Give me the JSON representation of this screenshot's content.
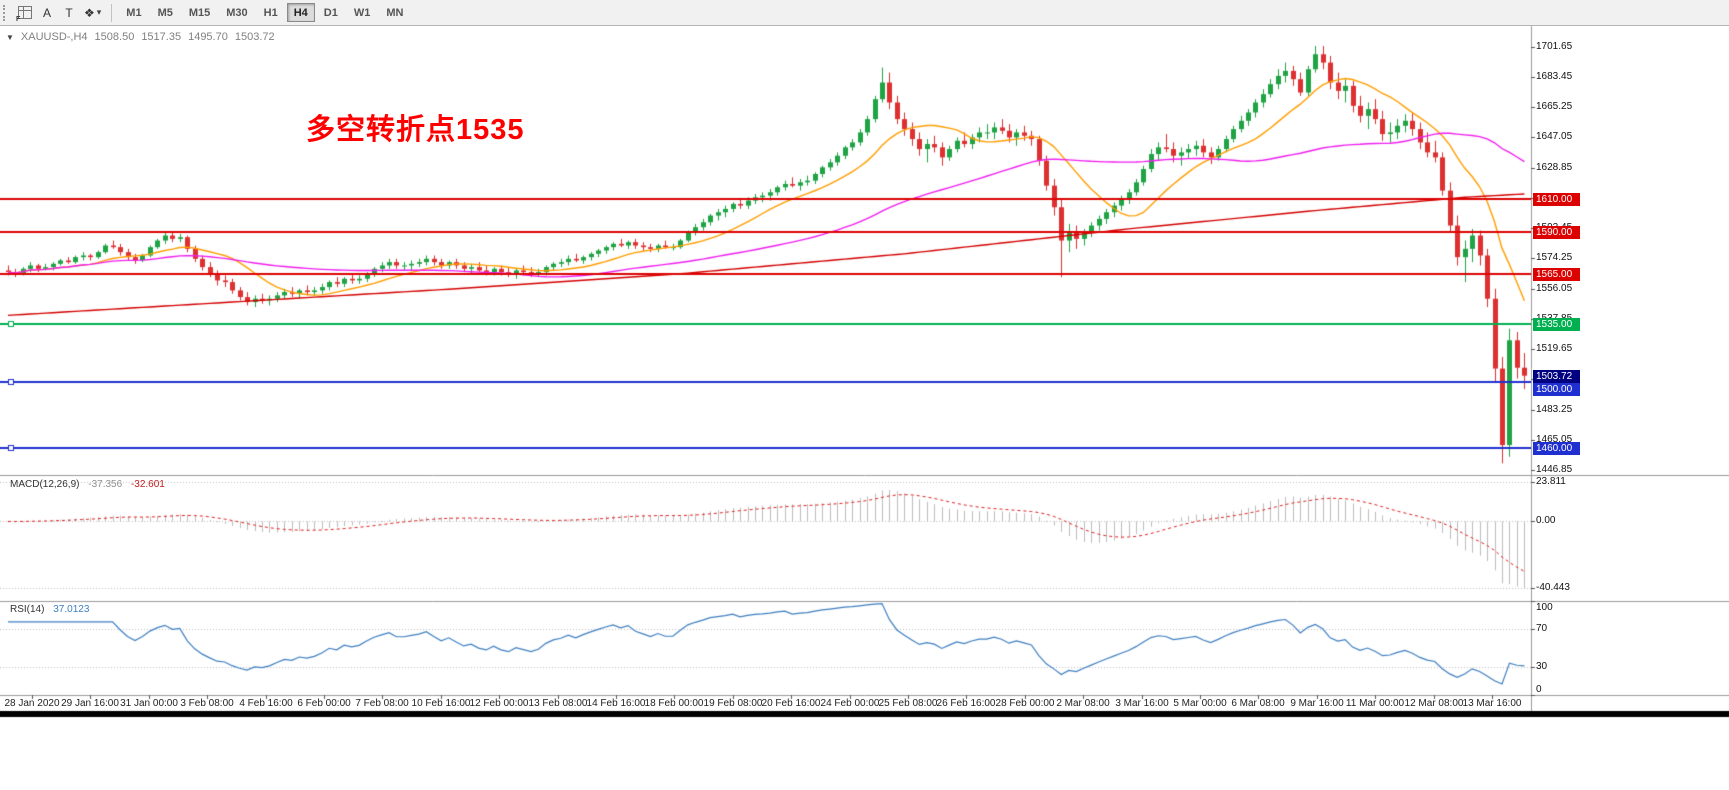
{
  "toolbar": {
    "tools": {
      "grid_f": "F",
      "text_a": "A",
      "text_label": "T",
      "arrows": "❖",
      "dropdown": "▾"
    },
    "timeframes": [
      "M1",
      "M5",
      "M15",
      "M30",
      "H1",
      "H4",
      "D1",
      "W1",
      "MN"
    ],
    "active_timeframe": "H4"
  },
  "chart": {
    "expander_icon": "▼",
    "symbol_period": "XAUUSD-,H4",
    "ohlc_text": {
      "open": "1508.50",
      "high": "1517.35",
      "low": "1495.70",
      "close": "1503.72"
    },
    "annotation": {
      "text": "多空转折点1535",
      "color": "#FF0000"
    },
    "price_axis_ticks": [
      "1701.65",
      "1683.45",
      "1665.25",
      "1647.05",
      "1628.85",
      "1610.65",
      "1592.45",
      "1574.25",
      "1556.05",
      "1537.85",
      "1519.65",
      "1501.45",
      "1483.25",
      "1465.05",
      "1446.85"
    ],
    "levels": [
      {
        "label": "1610.00",
        "price": 1610,
        "color": "#DD0202"
      },
      {
        "label": "1590.00",
        "price": 1590,
        "color": "#DD0202"
      },
      {
        "label": "1565.00",
        "price": 1565,
        "color": "#DD0202"
      },
      {
        "label": "1535.00",
        "price": 1535,
        "color": "#00B050"
      },
      {
        "label": "1500.00",
        "price": 1500,
        "color": "#2030D0"
      },
      {
        "label": "1460.00",
        "price": 1460,
        "color": "#2030D0"
      }
    ],
    "current_price": {
      "label": "1503.72",
      "price": 1503.72,
      "badge_color": "#000080"
    }
  },
  "indicators": {
    "macd": {
      "name": "MACD(12,26,9)",
      "value_main": "-37.356",
      "value_signal": "-32.601",
      "scale_ticks": [
        "23.811",
        "0.00",
        "-40.443"
      ]
    },
    "rsi": {
      "name": "RSI(14)",
      "value": "37.0123",
      "scale_ticks": [
        "100",
        "70",
        "30",
        "0"
      ]
    }
  },
  "chart_data": {
    "type": "candlestick",
    "symbol": "XAUUSD-",
    "timeframe": "H4",
    "ylim": [
      1444,
      1714
    ],
    "x_labels": [
      "28 Jan 2020",
      "29 Jan 16:00",
      "31 Jan 00:00",
      "3 Feb 08:00",
      "4 Feb 16:00",
      "6 Feb 00:00",
      "7 Feb 08:00",
      "10 Feb 16:00",
      "12 Feb 00:00",
      "13 Feb 08:00",
      "14 Feb 16:00",
      "18 Feb 00:00",
      "19 Feb 08:00",
      "20 Feb 16:00",
      "24 Feb 00:00",
      "25 Feb 08:00",
      "26 Feb 16:00",
      "28 Feb 00:00",
      "2 Mar 08:00",
      "3 Mar 16:00",
      "5 Mar 00:00",
      "6 Mar 08:00",
      "9 Mar 16:00",
      "11 Mar 00:00",
      "12 Mar 08:00",
      "13 Mar 16:00"
    ],
    "ohlc": [
      [
        1567,
        1570,
        1564,
        1566
      ],
      [
        1566,
        1568,
        1563,
        1565
      ],
      [
        1565,
        1569,
        1564,
        1568
      ],
      [
        1568,
        1572,
        1566,
        1570
      ],
      [
        1570,
        1571,
        1566,
        1568
      ],
      [
        1568,
        1571,
        1567,
        1569
      ],
      [
        1569,
        1572,
        1567,
        1571
      ],
      [
        1571,
        1574,
        1570,
        1573
      ],
      [
        1573,
        1575,
        1571,
        1572
      ],
      [
        1572,
        1576,
        1571,
        1575
      ],
      [
        1575,
        1578,
        1573,
        1576
      ],
      [
        1576,
        1577,
        1573,
        1575
      ],
      [
        1575,
        1579,
        1574,
        1578
      ],
      [
        1578,
        1583,
        1577,
        1582
      ],
      [
        1582,
        1585,
        1580,
        1581
      ],
      [
        1581,
        1583,
        1576,
        1578
      ],
      [
        1578,
        1580,
        1573,
        1575
      ],
      [
        1575,
        1577,
        1571,
        1573
      ],
      [
        1573,
        1577,
        1572,
        1576
      ],
      [
        1576,
        1582,
        1575,
        1581
      ],
      [
        1581,
        1586,
        1580,
        1585
      ],
      [
        1585,
        1590,
        1583,
        1588
      ],
      [
        1588,
        1590,
        1584,
        1586
      ],
      [
        1586,
        1589,
        1584,
        1587
      ],
      [
        1587,
        1588,
        1578,
        1580
      ],
      [
        1580,
        1582,
        1572,
        1574
      ],
      [
        1574,
        1576,
        1567,
        1569
      ],
      [
        1569,
        1572,
        1563,
        1565
      ],
      [
        1565,
        1567,
        1558,
        1561
      ],
      [
        1561,
        1564,
        1557,
        1560
      ],
      [
        1560,
        1562,
        1553,
        1555
      ],
      [
        1555,
        1557,
        1549,
        1551
      ],
      [
        1551,
        1554,
        1546,
        1548
      ],
      [
        1548,
        1552,
        1545,
        1550
      ],
      [
        1550,
        1553,
        1547,
        1549
      ],
      [
        1549,
        1552,
        1546,
        1550
      ],
      [
        1550,
        1554,
        1548,
        1552
      ],
      [
        1552,
        1556,
        1550,
        1554
      ],
      [
        1554,
        1557,
        1551,
        1553
      ],
      [
        1553,
        1556,
        1550,
        1555
      ],
      [
        1555,
        1558,
        1552,
        1554
      ],
      [
        1554,
        1557,
        1552,
        1555
      ],
      [
        1555,
        1559,
        1553,
        1557
      ],
      [
        1557,
        1561,
        1555,
        1560
      ],
      [
        1560,
        1563,
        1557,
        1559
      ],
      [
        1559,
        1563,
        1557,
        1562
      ],
      [
        1562,
        1565,
        1559,
        1561
      ],
      [
        1561,
        1564,
        1559,
        1562
      ],
      [
        1562,
        1566,
        1560,
        1565
      ],
      [
        1565,
        1569,
        1563,
        1568
      ],
      [
        1568,
        1572,
        1566,
        1570
      ],
      [
        1570,
        1574,
        1568,
        1572
      ],
      [
        1572,
        1574,
        1568,
        1570
      ],
      [
        1570,
        1572,
        1567,
        1570
      ],
      [
        1570,
        1573,
        1567,
        1571
      ],
      [
        1571,
        1574,
        1569,
        1572
      ],
      [
        1572,
        1576,
        1570,
        1574
      ],
      [
        1574,
        1576,
        1570,
        1572
      ],
      [
        1572,
        1574,
        1568,
        1570
      ],
      [
        1570,
        1573,
        1568,
        1572
      ],
      [
        1572,
        1574,
        1568,
        1570
      ],
      [
        1570,
        1572,
        1566,
        1568
      ],
      [
        1568,
        1571,
        1565,
        1569
      ],
      [
        1569,
        1572,
        1566,
        1567
      ],
      [
        1567,
        1570,
        1564,
        1566
      ],
      [
        1566,
        1569,
        1564,
        1568
      ],
      [
        1568,
        1570,
        1564,
        1566
      ],
      [
        1566,
        1569,
        1563,
        1565
      ],
      [
        1565,
        1568,
        1562,
        1567
      ],
      [
        1567,
        1570,
        1564,
        1566
      ],
      [
        1566,
        1569,
        1563,
        1565
      ],
      [
        1565,
        1568,
        1563,
        1566
      ],
      [
        1566,
        1570,
        1564,
        1569
      ],
      [
        1569,
        1572,
        1567,
        1571
      ],
      [
        1571,
        1574,
        1569,
        1572
      ],
      [
        1572,
        1576,
        1570,
        1574
      ],
      [
        1574,
        1577,
        1572,
        1573
      ],
      [
        1573,
        1576,
        1571,
        1575
      ],
      [
        1575,
        1578,
        1573,
        1577
      ],
      [
        1577,
        1580,
        1575,
        1579
      ],
      [
        1579,
        1582,
        1577,
        1581
      ],
      [
        1581,
        1584,
        1579,
        1583
      ],
      [
        1583,
        1586,
        1581,
        1582
      ],
      [
        1582,
        1585,
        1580,
        1584
      ],
      [
        1584,
        1586,
        1580,
        1582
      ],
      [
        1582,
        1584,
        1579,
        1581
      ],
      [
        1581,
        1583,
        1578,
        1580
      ],
      [
        1580,
        1583,
        1578,
        1582
      ],
      [
        1582,
        1585,
        1580,
        1581
      ],
      [
        1581,
        1583,
        1579,
        1581
      ],
      [
        1581,
        1586,
        1580,
        1585
      ],
      [
        1585,
        1591,
        1584,
        1590
      ],
      [
        1590,
        1595,
        1588,
        1593
      ],
      [
        1593,
        1598,
        1591,
        1596
      ],
      [
        1596,
        1601,
        1594,
        1600
      ],
      [
        1600,
        1604,
        1597,
        1602
      ],
      [
        1602,
        1606,
        1599,
        1604
      ],
      [
        1604,
        1608,
        1602,
        1607
      ],
      [
        1607,
        1610,
        1604,
        1606
      ],
      [
        1606,
        1611,
        1604,
        1609
      ],
      [
        1609,
        1613,
        1607,
        1611
      ],
      [
        1611,
        1614,
        1608,
        1612
      ],
      [
        1612,
        1616,
        1609,
        1614
      ],
      [
        1614,
        1618,
        1612,
        1617
      ],
      [
        1617,
        1621,
        1615,
        1619
      ],
      [
        1619,
        1623,
        1617,
        1618
      ],
      [
        1618,
        1622,
        1615,
        1620
      ],
      [
        1620,
        1624,
        1618,
        1621
      ],
      [
        1621,
        1626,
        1619,
        1625
      ],
      [
        1625,
        1630,
        1623,
        1629
      ],
      [
        1629,
        1634,
        1627,
        1632
      ],
      [
        1632,
        1638,
        1630,
        1636
      ],
      [
        1636,
        1642,
        1634,
        1641
      ],
      [
        1641,
        1646,
        1639,
        1644
      ],
      [
        1644,
        1652,
        1642,
        1650
      ],
      [
        1650,
        1660,
        1648,
        1658
      ],
      [
        1658,
        1672,
        1656,
        1670
      ],
      [
        1670,
        1689,
        1668,
        1680
      ],
      [
        1680,
        1686,
        1664,
        1668
      ],
      [
        1668,
        1672,
        1655,
        1658
      ],
      [
        1658,
        1662,
        1648,
        1652
      ],
      [
        1652,
        1656,
        1642,
        1646
      ],
      [
        1646,
        1650,
        1636,
        1640
      ],
      [
        1640,
        1646,
        1632,
        1643
      ],
      [
        1643,
        1648,
        1638,
        1641
      ],
      [
        1641,
        1644,
        1630,
        1635
      ],
      [
        1635,
        1642,
        1633,
        1640
      ],
      [
        1640,
        1647,
        1638,
        1645
      ],
      [
        1645,
        1650,
        1641,
        1643
      ],
      [
        1643,
        1649,
        1640,
        1647
      ],
      [
        1647,
        1653,
        1644,
        1650
      ],
      [
        1650,
        1655,
        1646,
        1650
      ],
      [
        1650,
        1656,
        1646,
        1653
      ],
      [
        1653,
        1658,
        1649,
        1651
      ],
      [
        1651,
        1655,
        1644,
        1647
      ],
      [
        1647,
        1652,
        1642,
        1650
      ],
      [
        1650,
        1654,
        1645,
        1648
      ],
      [
        1648,
        1651,
        1642,
        1646
      ],
      [
        1646,
        1648,
        1630,
        1633
      ],
      [
        1633,
        1636,
        1615,
        1618
      ],
      [
        1618,
        1622,
        1600,
        1605
      ],
      [
        1605,
        1610,
        1563,
        1585
      ],
      [
        1585,
        1595,
        1578,
        1590
      ],
      [
        1590,
        1594,
        1580,
        1586
      ],
      [
        1586,
        1592,
        1582,
        1590
      ],
      [
        1590,
        1596,
        1587,
        1594
      ],
      [
        1594,
        1600,
        1591,
        1598
      ],
      [
        1598,
        1604,
        1595,
        1602
      ],
      [
        1602,
        1608,
        1599,
        1606
      ],
      [
        1606,
        1612,
        1603,
        1610
      ],
      [
        1610,
        1616,
        1607,
        1614
      ],
      [
        1614,
        1622,
        1612,
        1620
      ],
      [
        1620,
        1630,
        1618,
        1628
      ],
      [
        1628,
        1640,
        1626,
        1637
      ],
      [
        1637,
        1644,
        1633,
        1641
      ],
      [
        1641,
        1649,
        1638,
        1640
      ],
      [
        1640,
        1644,
        1632,
        1636
      ],
      [
        1636,
        1641,
        1630,
        1638
      ],
      [
        1638,
        1643,
        1634,
        1640
      ],
      [
        1640,
        1645,
        1636,
        1642
      ],
      [
        1642,
        1646,
        1635,
        1638
      ],
      [
        1638,
        1641,
        1631,
        1635
      ],
      [
        1635,
        1642,
        1633,
        1640
      ],
      [
        1640,
        1648,
        1638,
        1646
      ],
      [
        1646,
        1654,
        1644,
        1652
      ],
      [
        1652,
        1660,
        1650,
        1657
      ],
      [
        1657,
        1664,
        1654,
        1662
      ],
      [
        1662,
        1670,
        1659,
        1668
      ],
      [
        1668,
        1676,
        1665,
        1673
      ],
      [
        1673,
        1682,
        1671,
        1679
      ],
      [
        1679,
        1688,
        1676,
        1684
      ],
      [
        1684,
        1692,
        1680,
        1687
      ],
      [
        1687,
        1690,
        1678,
        1682
      ],
      [
        1682,
        1686,
        1672,
        1674
      ],
      [
        1674,
        1690,
        1672,
        1688
      ],
      [
        1688,
        1702,
        1686,
        1697
      ],
      [
        1697,
        1702,
        1688,
        1692
      ],
      [
        1692,
        1696,
        1676,
        1680
      ],
      [
        1680,
        1686,
        1670,
        1675
      ],
      [
        1675,
        1682,
        1668,
        1678
      ],
      [
        1678,
        1681,
        1662,
        1666
      ],
      [
        1666,
        1672,
        1656,
        1660
      ],
      [
        1660,
        1668,
        1652,
        1664
      ],
      [
        1664,
        1670,
        1655,
        1658
      ],
      [
        1658,
        1663,
        1645,
        1649
      ],
      [
        1649,
        1656,
        1644,
        1650
      ],
      [
        1650,
        1658,
        1646,
        1654
      ],
      [
        1654,
        1661,
        1650,
        1657
      ],
      [
        1657,
        1662,
        1648,
        1652
      ],
      [
        1652,
        1656,
        1640,
        1644
      ],
      [
        1644,
        1650,
        1635,
        1638
      ],
      [
        1638,
        1645,
        1632,
        1635
      ],
      [
        1635,
        1638,
        1612,
        1615
      ],
      [
        1615,
        1620,
        1590,
        1594
      ],
      [
        1594,
        1600,
        1570,
        1575
      ],
      [
        1575,
        1585,
        1560,
        1580
      ],
      [
        1580,
        1592,
        1572,
        1588
      ],
      [
        1588,
        1591,
        1570,
        1576
      ],
      [
        1576,
        1580,
        1545,
        1550
      ],
      [
        1550,
        1556,
        1500,
        1508
      ],
      [
        1508,
        1515,
        1451,
        1462
      ],
      [
        1462,
        1532,
        1455,
        1525
      ],
      [
        1525,
        1530,
        1502,
        1508.5
      ],
      [
        1508.5,
        1517.35,
        1495.7,
        1503.72
      ]
    ],
    "overlays": {
      "ma_fast": {
        "period": 12,
        "color": "#FF9E00"
      },
      "ma_mid": {
        "period": 48,
        "color": "#F01FF0"
      },
      "ma_slow": {
        "color": "#D40000",
        "points": [
          [
            0,
            1540
          ],
          [
            30,
            1548
          ],
          [
            60,
            1556
          ],
          [
            90,
            1565
          ],
          [
            120,
            1577
          ],
          [
            150,
            1592
          ],
          [
            175,
            1603
          ],
          [
            195,
            1611
          ],
          [
            203,
            1613
          ]
        ]
      },
      "horizontal_lines": [
        1610,
        1590,
        1565,
        1535,
        1500,
        1460
      ]
    },
    "colors": {
      "bull": "#1FA345",
      "bear": "#DE3031",
      "macd_hist": "#BDBDBD",
      "macd_signal": "#E02020",
      "rsi_line": "#3E7FC1",
      "grid_dotted": "#C0C0C0"
    },
    "macd": {
      "fast": 12,
      "slow": 26,
      "signal": 9,
      "ylim": [
        -48,
        28
      ]
    },
    "rsi": {
      "period": 14,
      "levels": [
        70,
        30
      ],
      "ylim": [
        0,
        100
      ]
    }
  }
}
